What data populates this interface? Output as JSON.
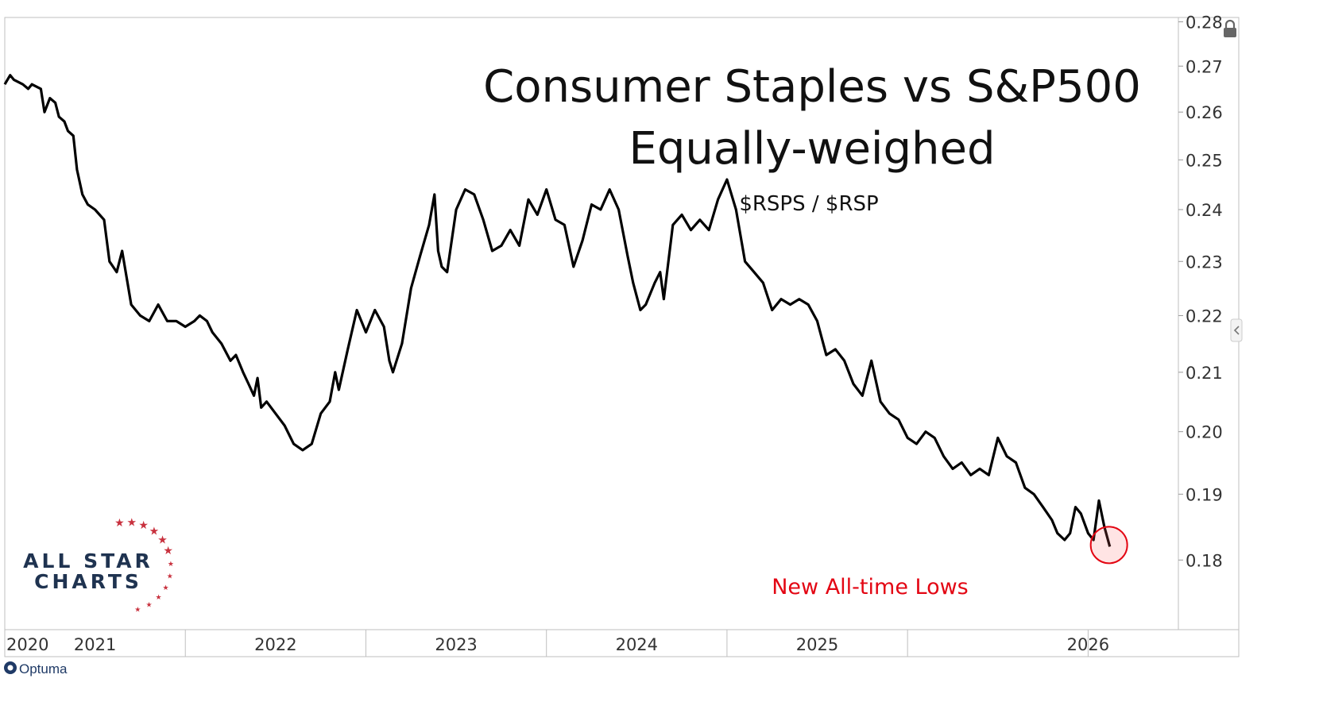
{
  "chart_data": {
    "type": "line",
    "title": "Consumer Staples vs S&P500",
    "subtitle": "Equally-weighed",
    "ticker": "$RSPS / $RSP",
    "annotation": "New All-time Lows",
    "x_tick_labels": [
      "2020",
      "2021",
      "2022",
      "2023",
      "2024",
      "2025",
      "2026"
    ],
    "y_tick_labels": [
      "0.28",
      "0.27",
      "0.26",
      "0.25",
      "0.24",
      "0.23",
      "0.22",
      "0.21",
      "0.20",
      "0.19",
      "0.18"
    ],
    "y_scale": "log",
    "ylim": [
      0.17,
      0.281
    ],
    "xlim": [
      2020.0,
      2026.5
    ],
    "grid": false,
    "series": [
      {
        "color": "#000000",
        "points": [
          [
            2020.0,
            0.266
          ],
          [
            2020.03,
            0.268
          ],
          [
            2020.05,
            0.267
          ],
          [
            2020.1,
            0.266
          ],
          [
            2020.13,
            0.265
          ],
          [
            2020.15,
            0.266
          ],
          [
            2020.2,
            0.265
          ],
          [
            2020.22,
            0.26
          ],
          [
            2020.25,
            0.263
          ],
          [
            2020.28,
            0.262
          ],
          [
            2020.3,
            0.259
          ],
          [
            2020.33,
            0.258
          ],
          [
            2020.35,
            0.256
          ],
          [
            2020.38,
            0.255
          ],
          [
            2020.4,
            0.248
          ],
          [
            2020.43,
            0.243
          ],
          [
            2020.46,
            0.241
          ],
          [
            2020.5,
            0.24
          ],
          [
            2020.55,
            0.238
          ],
          [
            2020.58,
            0.23
          ],
          [
            2020.6,
            0.229
          ],
          [
            2020.62,
            0.228
          ],
          [
            2020.65,
            0.232
          ],
          [
            2020.68,
            0.226
          ],
          [
            2020.7,
            0.222
          ],
          [
            2020.75,
            0.22
          ],
          [
            2020.8,
            0.219
          ],
          [
            2020.85,
            0.222
          ],
          [
            2020.9,
            0.219
          ],
          [
            2020.95,
            0.219
          ],
          [
            2021.0,
            0.218
          ],
          [
            2021.05,
            0.219
          ],
          [
            2021.08,
            0.22
          ],
          [
            2021.12,
            0.219
          ],
          [
            2021.15,
            0.217
          ],
          [
            2021.2,
            0.215
          ],
          [
            2021.25,
            0.212
          ],
          [
            2021.28,
            0.213
          ],
          [
            2021.32,
            0.21
          ],
          [
            2021.35,
            0.208
          ],
          [
            2021.38,
            0.206
          ],
          [
            2021.4,
            0.209
          ],
          [
            2021.42,
            0.204
          ],
          [
            2021.45,
            0.205
          ],
          [
            2021.5,
            0.203
          ],
          [
            2021.55,
            0.201
          ],
          [
            2021.6,
            0.198
          ],
          [
            2021.65,
            0.197
          ],
          [
            2021.7,
            0.198
          ],
          [
            2021.75,
            0.203
          ],
          [
            2021.8,
            0.205
          ],
          [
            2021.83,
            0.21
          ],
          [
            2021.85,
            0.207
          ],
          [
            2021.9,
            0.214
          ],
          [
            2021.95,
            0.221
          ],
          [
            2022.0,
            0.217
          ],
          [
            2022.05,
            0.221
          ],
          [
            2022.1,
            0.218
          ],
          [
            2022.13,
            0.212
          ],
          [
            2022.15,
            0.21
          ],
          [
            2022.2,
            0.215
          ],
          [
            2022.25,
            0.225
          ],
          [
            2022.3,
            0.231
          ],
          [
            2022.35,
            0.237
          ],
          [
            2022.38,
            0.243
          ],
          [
            2022.4,
            0.232
          ],
          [
            2022.42,
            0.229
          ],
          [
            2022.45,
            0.228
          ],
          [
            2022.5,
            0.24
          ],
          [
            2022.55,
            0.244
          ],
          [
            2022.6,
            0.243
          ],
          [
            2022.65,
            0.238
          ],
          [
            2022.7,
            0.232
          ],
          [
            2022.75,
            0.233
          ],
          [
            2022.8,
            0.236
          ],
          [
            2022.85,
            0.233
          ],
          [
            2022.9,
            0.242
          ],
          [
            2022.95,
            0.239
          ],
          [
            2023.0,
            0.244
          ],
          [
            2023.05,
            0.238
          ],
          [
            2023.1,
            0.237
          ],
          [
            2023.15,
            0.229
          ],
          [
            2023.2,
            0.234
          ],
          [
            2023.25,
            0.241
          ],
          [
            2023.3,
            0.24
          ],
          [
            2023.35,
            0.244
          ],
          [
            2023.4,
            0.24
          ],
          [
            2023.45,
            0.231
          ],
          [
            2023.48,
            0.226
          ],
          [
            2023.52,
            0.221
          ],
          [
            2023.55,
            0.222
          ],
          [
            2023.6,
            0.226
          ],
          [
            2023.63,
            0.228
          ],
          [
            2023.65,
            0.223
          ],
          [
            2023.7,
            0.237
          ],
          [
            2023.75,
            0.239
          ],
          [
            2023.8,
            0.236
          ],
          [
            2023.85,
            0.238
          ],
          [
            2023.9,
            0.236
          ],
          [
            2023.95,
            0.242
          ],
          [
            2024.0,
            0.246
          ],
          [
            2024.05,
            0.24
          ],
          [
            2024.1,
            0.23
          ],
          [
            2024.15,
            0.228
          ],
          [
            2024.2,
            0.226
          ],
          [
            2024.25,
            0.221
          ],
          [
            2024.3,
            0.223
          ],
          [
            2024.35,
            0.222
          ],
          [
            2024.4,
            0.223
          ],
          [
            2024.45,
            0.222
          ],
          [
            2024.5,
            0.219
          ],
          [
            2024.55,
            0.213
          ],
          [
            2024.6,
            0.214
          ],
          [
            2024.65,
            0.212
          ],
          [
            2024.7,
            0.208
          ],
          [
            2024.75,
            0.206
          ],
          [
            2024.8,
            0.212
          ],
          [
            2024.85,
            0.205
          ],
          [
            2024.9,
            0.203
          ],
          [
            2024.95,
            0.202
          ],
          [
            2025.0,
            0.199
          ],
          [
            2025.05,
            0.198
          ],
          [
            2025.1,
            0.2
          ],
          [
            2025.15,
            0.199
          ],
          [
            2025.2,
            0.196
          ],
          [
            2025.25,
            0.194
          ],
          [
            2025.3,
            0.195
          ],
          [
            2025.35,
            0.193
          ],
          [
            2025.4,
            0.194
          ],
          [
            2025.45,
            0.193
          ],
          [
            2025.5,
            0.199
          ],
          [
            2025.55,
            0.196
          ],
          [
            2025.6,
            0.195
          ],
          [
            2025.65,
            0.191
          ],
          [
            2025.7,
            0.19
          ],
          [
            2025.75,
            0.188
          ],
          [
            2025.8,
            0.186
          ],
          [
            2025.83,
            0.184
          ],
          [
            2025.87,
            0.183
          ],
          [
            2025.9,
            0.184
          ],
          [
            2025.93,
            0.188
          ],
          [
            2025.96,
            0.187
          ],
          [
            2026.0,
            0.184
          ],
          [
            2026.03,
            0.183
          ],
          [
            2026.06,
            0.189
          ],
          [
            2026.09,
            0.185
          ],
          [
            2026.12,
            0.182
          ]
        ]
      }
    ]
  },
  "branding": {
    "logo_line1": "ALL STAR",
    "logo_line2": "CHARTS",
    "footer": "Optuma"
  },
  "colors": {
    "line": "#000000",
    "annotation": "#e30613",
    "logo_text": "#1f3350",
    "logo_stars": "#c8313e"
  }
}
